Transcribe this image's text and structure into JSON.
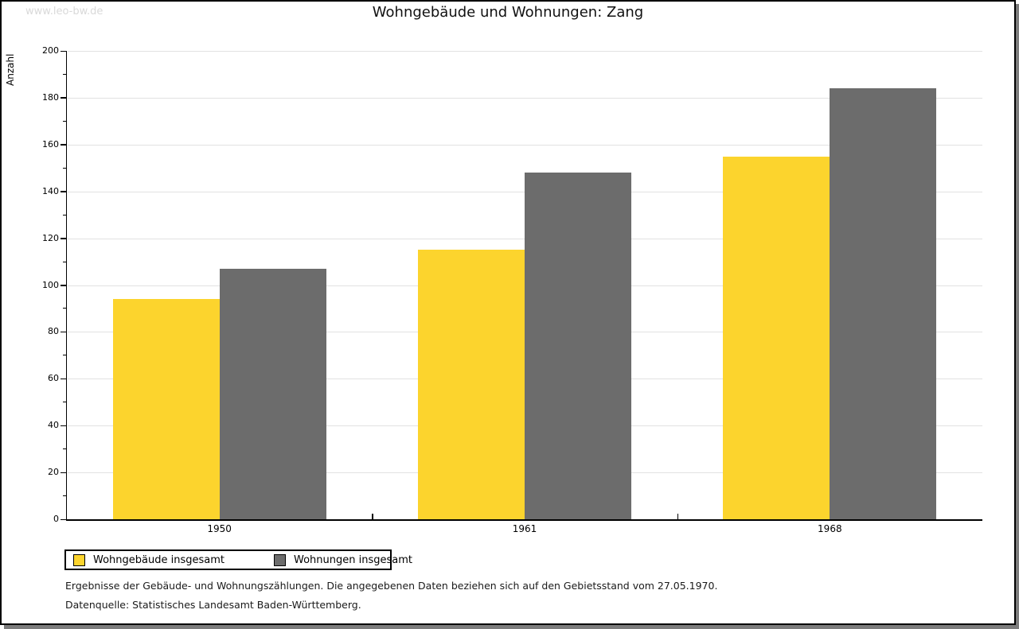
{
  "page": {
    "watermark": "www.leo-bw.de",
    "title": "Wohngebäude und Wohnungen: Zang"
  },
  "chart_data": {
    "type": "bar",
    "title": "Wohngebäude und Wohnungen: Zang",
    "categories": [
      "1950",
      "1961",
      "1968"
    ],
    "series": [
      {
        "name": "Wohngebäude insgesamt",
        "color": "#FCD42D",
        "values": [
          94,
          115,
          155
        ]
      },
      {
        "name": "Wohnungen insgesamt",
        "color": "#6C6C6C",
        "values": [
          107,
          148,
          184
        ]
      }
    ],
    "ylabel": "Anzahl",
    "ylim": [
      0,
      200
    ],
    "ytick_step": 20,
    "ytick_minor_step": 10,
    "grid": "horizontal-major",
    "gridline_color": "#e2e2e2",
    "legend_position": "bottom-left"
  },
  "footer": {
    "line1": "Ergebnisse der Gebäude- und Wohnungszählungen. Die angegebenen Daten beziehen sich auf den Gebietsstand vom 27.05.1970.",
    "line2": "Datenquelle: Statistisches Landesamt Baden-Württemberg."
  }
}
